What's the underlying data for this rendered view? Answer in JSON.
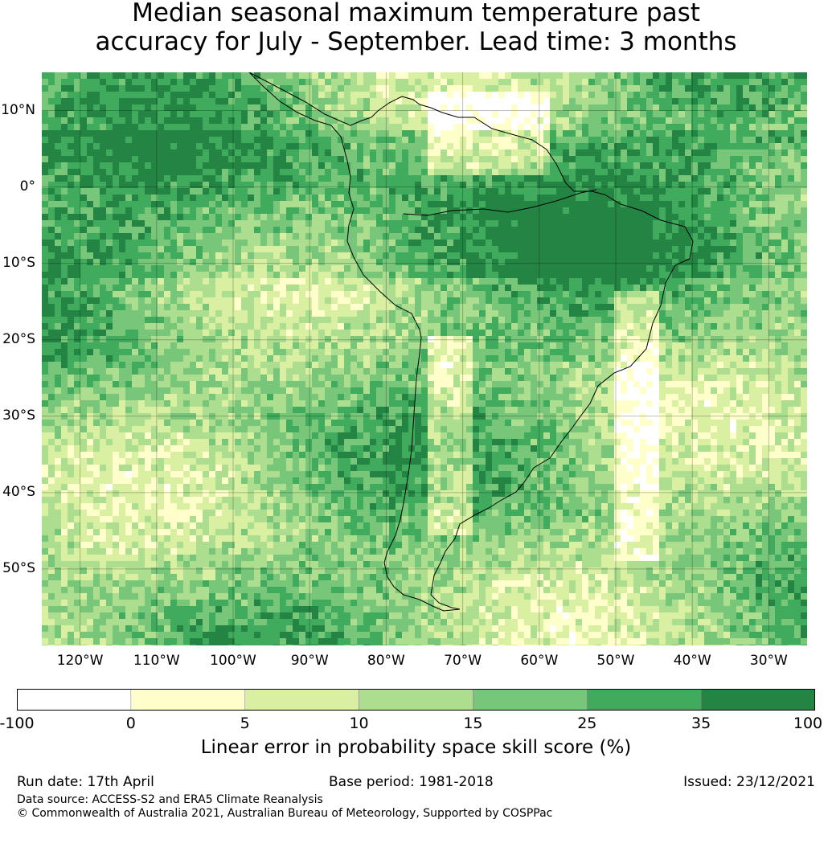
{
  "title": {
    "line1": "Median seasonal maximum temperature past",
    "line2": "accuracy for July - September. Lead time: 3 months"
  },
  "map": {
    "lat_labels": [
      "10°N",
      "0°",
      "10°S",
      "20°S",
      "30°S",
      "40°S",
      "50°S"
    ],
    "lat_values": [
      10,
      0,
      -10,
      -20,
      -30,
      -40,
      -50
    ],
    "lon_labels": [
      "120°W",
      "110°W",
      "100°W",
      "90°W",
      "80°W",
      "70°W",
      "60°W",
      "50°W",
      "40°W",
      "30°W"
    ],
    "lon_values": [
      -120,
      -110,
      -100,
      -90,
      -80,
      -70,
      -60,
      -50,
      -40,
      -30
    ],
    "lon_range": [
      -125,
      -25
    ],
    "lat_range": [
      -60,
      15
    ]
  },
  "colorbar": {
    "ticks": [
      "-100",
      "0",
      "5",
      "10",
      "15",
      "25",
      "35",
      "100"
    ],
    "colors": [
      "#ffffff",
      "#ffffcc",
      "#d9f0a3",
      "#addd8e",
      "#78c679",
      "#41ab5d",
      "#238443"
    ],
    "label": "Linear error in probability space skill score (%)"
  },
  "footer": {
    "run_date": "Run date: 17th April",
    "base_period": "Base period: 1981-2018",
    "issued": "Issued: 23/12/2021",
    "data_source": "Data source: ACCESS-S2 and ERA5 Climate Reanalysis",
    "copyright": "© Commonwealth of Australia 2021, Australian Bureau of Meteorology, Supported by COSPPac"
  }
}
